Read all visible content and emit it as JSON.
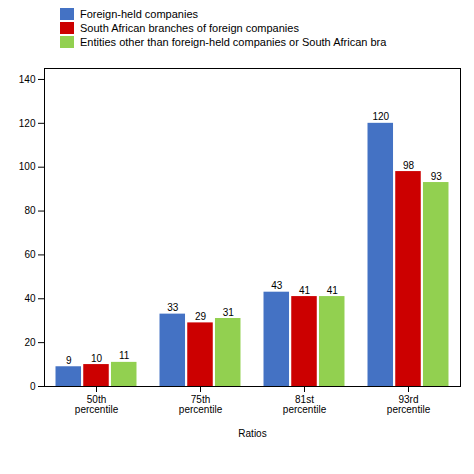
{
  "chart_data": {
    "type": "bar",
    "categories": [
      "50th\npercentile",
      "75th\npercentile",
      "81st\npercentile",
      "93rd\npercentile"
    ],
    "series": [
      {
        "name": "Foreign-held companies",
        "color": "#4472C4",
        "values": [
          9,
          33,
          43,
          120
        ]
      },
      {
        "name": "South African branches of foreign companies",
        "color": "#CC0000",
        "values": [
          10,
          29,
          41,
          98
        ]
      },
      {
        "name": "Entities other than foreign-held companies or South African bra",
        "color": "#92D050",
        "values": [
          11,
          31,
          41,
          93
        ]
      }
    ],
    "xlabel": "Ratios",
    "ylim": [
      0,
      145
    ],
    "yticks": [
      0,
      20,
      40,
      60,
      80,
      100,
      120,
      140
    ],
    "grid": false,
    "legend": "top",
    "data_labels": true
  }
}
